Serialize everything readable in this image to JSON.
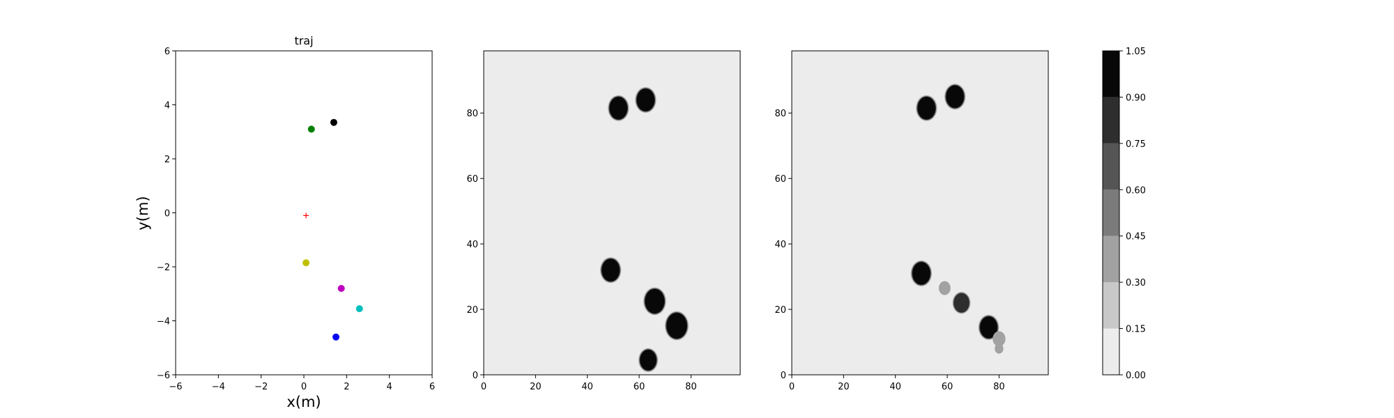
{
  "chart_data": [
    {
      "type": "scatter",
      "title": "traj",
      "xlabel": "x(m)",
      "ylabel": "y(m)",
      "xlim": [
        -6,
        6
      ],
      "ylim": [
        -6,
        6
      ],
      "xticks": [
        "−6",
        "−4",
        "−2",
        "0",
        "2",
        "4",
        "6"
      ],
      "yticks": [
        "−6",
        "−4",
        "−2",
        "0",
        "2",
        "4",
        "6"
      ],
      "points": [
        {
          "x": 1.4,
          "y": 3.35,
          "color": "#000000",
          "marker": "circle"
        },
        {
          "x": 0.35,
          "y": 3.1,
          "color": "#008000",
          "marker": "circle"
        },
        {
          "x": 0.1,
          "y": -0.1,
          "color": "#ff0000",
          "marker": "plus"
        },
        {
          "x": 0.1,
          "y": -1.85,
          "color": "#bfbf00",
          "marker": "circle"
        },
        {
          "x": 1.75,
          "y": -2.8,
          "color": "#bf00bf",
          "marker": "circle"
        },
        {
          "x": 2.6,
          "y": -3.55,
          "color": "#00bfbf",
          "marker": "circle"
        },
        {
          "x": 1.5,
          "y": -4.6,
          "color": "#0000ff",
          "marker": "circle"
        }
      ]
    },
    {
      "type": "heatmap",
      "title": "",
      "xlim": [
        0,
        99
      ],
      "ylim": [
        0,
        99
      ],
      "xticks": [
        "0",
        "20",
        "40",
        "60",
        "80"
      ],
      "yticks": [
        "0",
        "20",
        "40",
        "60",
        "80"
      ],
      "background_level": 0.0,
      "blobs": [
        {
          "x": 52,
          "y": 81.5,
          "r": 3.4,
          "level": 1.0
        },
        {
          "x": 62.5,
          "y": 84,
          "r": 3.4,
          "level": 1.0
        },
        {
          "x": 49,
          "y": 32,
          "r": 3.4,
          "level": 1.0
        },
        {
          "x": 66,
          "y": 22.5,
          "r": 3.7,
          "level": 1.0
        },
        {
          "x": 74.5,
          "y": 15,
          "r": 3.9,
          "level": 1.0
        },
        {
          "x": 63.5,
          "y": 4.5,
          "r": 3.1,
          "level": 1.0
        }
      ]
    },
    {
      "type": "heatmap",
      "title": "",
      "xlim": [
        0,
        99
      ],
      "ylim": [
        0,
        99
      ],
      "xticks": [
        "0",
        "20",
        "40",
        "60",
        "80"
      ],
      "yticks": [
        "0",
        "20",
        "40",
        "60",
        "80"
      ],
      "background_level": 0.0,
      "blobs": [
        {
          "x": 52,
          "y": 81.5,
          "r": 3.4,
          "level": 1.0
        },
        {
          "x": 63,
          "y": 85,
          "r": 3.4,
          "level": 1.0
        },
        {
          "x": 50,
          "y": 31,
          "r": 3.4,
          "level": 1.0
        },
        {
          "x": 65.5,
          "y": 22,
          "r": 2.8,
          "level": 0.85
        },
        {
          "x": 76,
          "y": 14.5,
          "r": 3.3,
          "level": 1.0
        },
        {
          "x": 59,
          "y": 26.5,
          "r": 1.6,
          "level": 0.3
        },
        {
          "x": 80,
          "y": 11,
          "r": 1.8,
          "level": 0.3
        },
        {
          "x": 80,
          "y": 8,
          "r": 1.0,
          "level": 0.3
        }
      ]
    }
  ],
  "colorbar": {
    "levels": [
      0.0,
      0.15,
      0.3,
      0.45,
      0.6,
      0.75,
      0.9,
      1.05
    ],
    "tick_labels": [
      "0.00",
      "0.15",
      "0.30",
      "0.45",
      "0.60",
      "0.75",
      "0.90",
      "1.05"
    ],
    "colors": [
      "#ececec",
      "#c8c8c8",
      "#a2a2a2",
      "#7b7b7b",
      "#555555",
      "#2e2e2e",
      "#080808"
    ]
  }
}
